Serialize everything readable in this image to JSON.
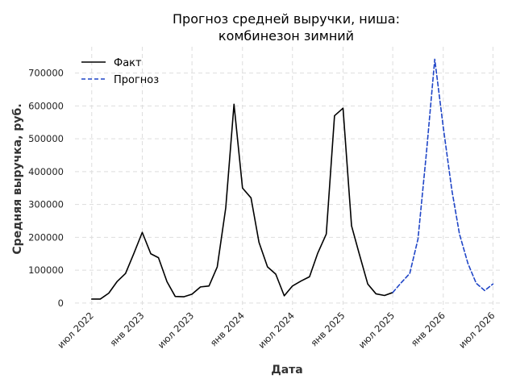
{
  "chart_data": {
    "type": "line",
    "title_lines": [
      "Прогноз средней выручки, ниша:",
      "комбинезон зимний"
    ],
    "xlabel": "Дата",
    "ylabel": "Средняя выручка, руб.",
    "x_ticks": [
      {
        "date": "2022-07-01",
        "label": "июл 2022"
      },
      {
        "date": "2023-01-01",
        "label": "янв 2023"
      },
      {
        "date": "2023-07-01",
        "label": "июл 2023"
      },
      {
        "date": "2024-01-01",
        "label": "янв 2024"
      },
      {
        "date": "2024-07-01",
        "label": "июл 2024"
      },
      {
        "date": "2025-01-01",
        "label": "янв 2025"
      },
      {
        "date": "2025-07-01",
        "label": "июл 2025"
      },
      {
        "date": "2026-01-01",
        "label": "янв 2026"
      },
      {
        "date": "2026-07-01",
        "label": "июл 2026"
      }
    ],
    "y_ticks": [
      0,
      100000,
      200000,
      300000,
      400000,
      500000,
      600000,
      700000
    ],
    "y_tick_labels": [
      "0",
      "100000",
      "200000",
      "300000",
      "400000",
      "500000",
      "600000",
      "700000"
    ],
    "xlim": [
      "2022-05-01",
      "2026-08-01"
    ],
    "ylim": [
      -20000,
      780000
    ],
    "grid": true,
    "legend_position": "top-left",
    "series": [
      {
        "name": "Факт",
        "color": "#000000",
        "style": "solid",
        "points": [
          [
            "2022-07-01",
            12000
          ],
          [
            "2022-08-01",
            12000
          ],
          [
            "2022-09-01",
            30000
          ],
          [
            "2022-10-01",
            65000
          ],
          [
            "2022-11-01",
            90000
          ],
          [
            "2022-12-01",
            150000
          ],
          [
            "2023-01-01",
            215000
          ],
          [
            "2023-02-01",
            150000
          ],
          [
            "2023-03-01",
            138000
          ],
          [
            "2023-04-01",
            65000
          ],
          [
            "2023-05-01",
            20000
          ],
          [
            "2023-06-01",
            19000
          ],
          [
            "2023-07-01",
            27000
          ],
          [
            "2023-08-01",
            49000
          ],
          [
            "2023-09-01",
            52000
          ],
          [
            "2023-10-01",
            110000
          ],
          [
            "2023-11-01",
            290000
          ],
          [
            "2023-12-01",
            605000
          ],
          [
            "2024-01-01",
            350000
          ],
          [
            "2024-02-01",
            320000
          ],
          [
            "2024-03-01",
            185000
          ],
          [
            "2024-04-01",
            110000
          ],
          [
            "2024-05-01",
            88000
          ],
          [
            "2024-06-01",
            22000
          ],
          [
            "2024-07-01",
            52000
          ],
          [
            "2024-08-01",
            67000
          ],
          [
            "2024-09-01",
            80000
          ],
          [
            "2024-10-01",
            152000
          ],
          [
            "2024-11-01",
            210000
          ],
          [
            "2024-12-01",
            570000
          ],
          [
            "2025-01-01",
            593000
          ],
          [
            "2025-02-01",
            235000
          ],
          [
            "2025-03-01",
            150000
          ],
          [
            "2025-04-01",
            58000
          ],
          [
            "2025-05-01",
            28000
          ],
          [
            "2025-06-01",
            23000
          ],
          [
            "2025-07-01",
            32000
          ]
        ]
      },
      {
        "name": "Прогноз",
        "color": "#1f45c7",
        "style": "dashed",
        "points": [
          [
            "2025-07-01",
            32000
          ],
          [
            "2025-08-01",
            62000
          ],
          [
            "2025-09-01",
            90000
          ],
          [
            "2025-10-01",
            195000
          ],
          [
            "2025-11-01",
            460000
          ],
          [
            "2025-12-01",
            742000
          ],
          [
            "2026-01-01",
            535000
          ],
          [
            "2026-02-01",
            345000
          ],
          [
            "2026-03-01",
            210000
          ],
          [
            "2026-04-01",
            120000
          ],
          [
            "2026-05-01",
            60000
          ],
          [
            "2026-06-01",
            38000
          ],
          [
            "2026-07-01",
            58000
          ]
        ]
      }
    ]
  }
}
